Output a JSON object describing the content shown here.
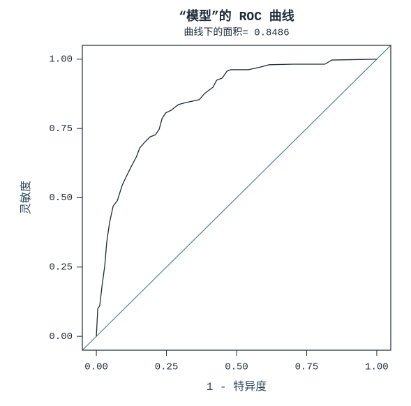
{
  "chart_data": {
    "type": "line",
    "title": "“模型”的 ROC 曲线",
    "subtitle": "曲线下的面积= 0.8486",
    "x_label": "1 - 特异度",
    "y_label": "灵敏度",
    "xlim": [
      -0.05,
      1.05
    ],
    "ylim": [
      -0.05,
      1.05
    ],
    "xticks": [
      {
        "value": 0,
        "label": "0.00"
      },
      {
        "value": 0.25,
        "label": "0.25"
      },
      {
        "value": 0.5,
        "label": "0.50"
      },
      {
        "value": 0.75,
        "label": "0.75"
      },
      {
        "value": 1,
        "label": "1.00"
      }
    ],
    "yticks": [
      {
        "value": 0,
        "label": "0.00"
      },
      {
        "value": 0.25,
        "label": "0.25"
      },
      {
        "value": 0.5,
        "label": "0.50"
      },
      {
        "value": 0.75,
        "label": "0.75"
      },
      {
        "value": 1,
        "label": "1.00"
      }
    ],
    "series": [
      {
        "color": "#5f8c99",
        "x": [
          -0.05,
          1.05
        ],
        "values": [
          -0.05,
          1.05
        ]
      },
      {
        "color": "#1c2a38",
        "x": [
          0,
          0.005,
          0.012,
          0.02,
          0.03,
          0.037,
          0.047,
          0.06,
          0.075,
          0.092,
          0.11,
          0.125,
          0.142,
          0.155,
          0.172,
          0.192,
          0.21,
          0.224,
          0.234,
          0.247,
          0.267,
          0.292,
          0.317,
          0.367,
          0.384,
          0.399,
          0.416,
          0.429,
          0.449,
          0.466,
          0.479,
          0.541,
          0.579,
          0.616,
          0.703,
          0.815,
          0.84,
          1
        ],
        "values": [
          0,
          0.1,
          0.11,
          0.18,
          0.255,
          0.34,
          0.41,
          0.47,
          0.49,
          0.545,
          0.583,
          0.614,
          0.646,
          0.68,
          0.7,
          0.72,
          0.727,
          0.747,
          0.785,
          0.806,
          0.816,
          0.836,
          0.843,
          0.854,
          0.874,
          0.886,
          0.899,
          0.924,
          0.932,
          0.957,
          0.962,
          0.962,
          0.97,
          0.98,
          0.982,
          0.982,
          0.997,
          1
        ]
      }
    ]
  }
}
